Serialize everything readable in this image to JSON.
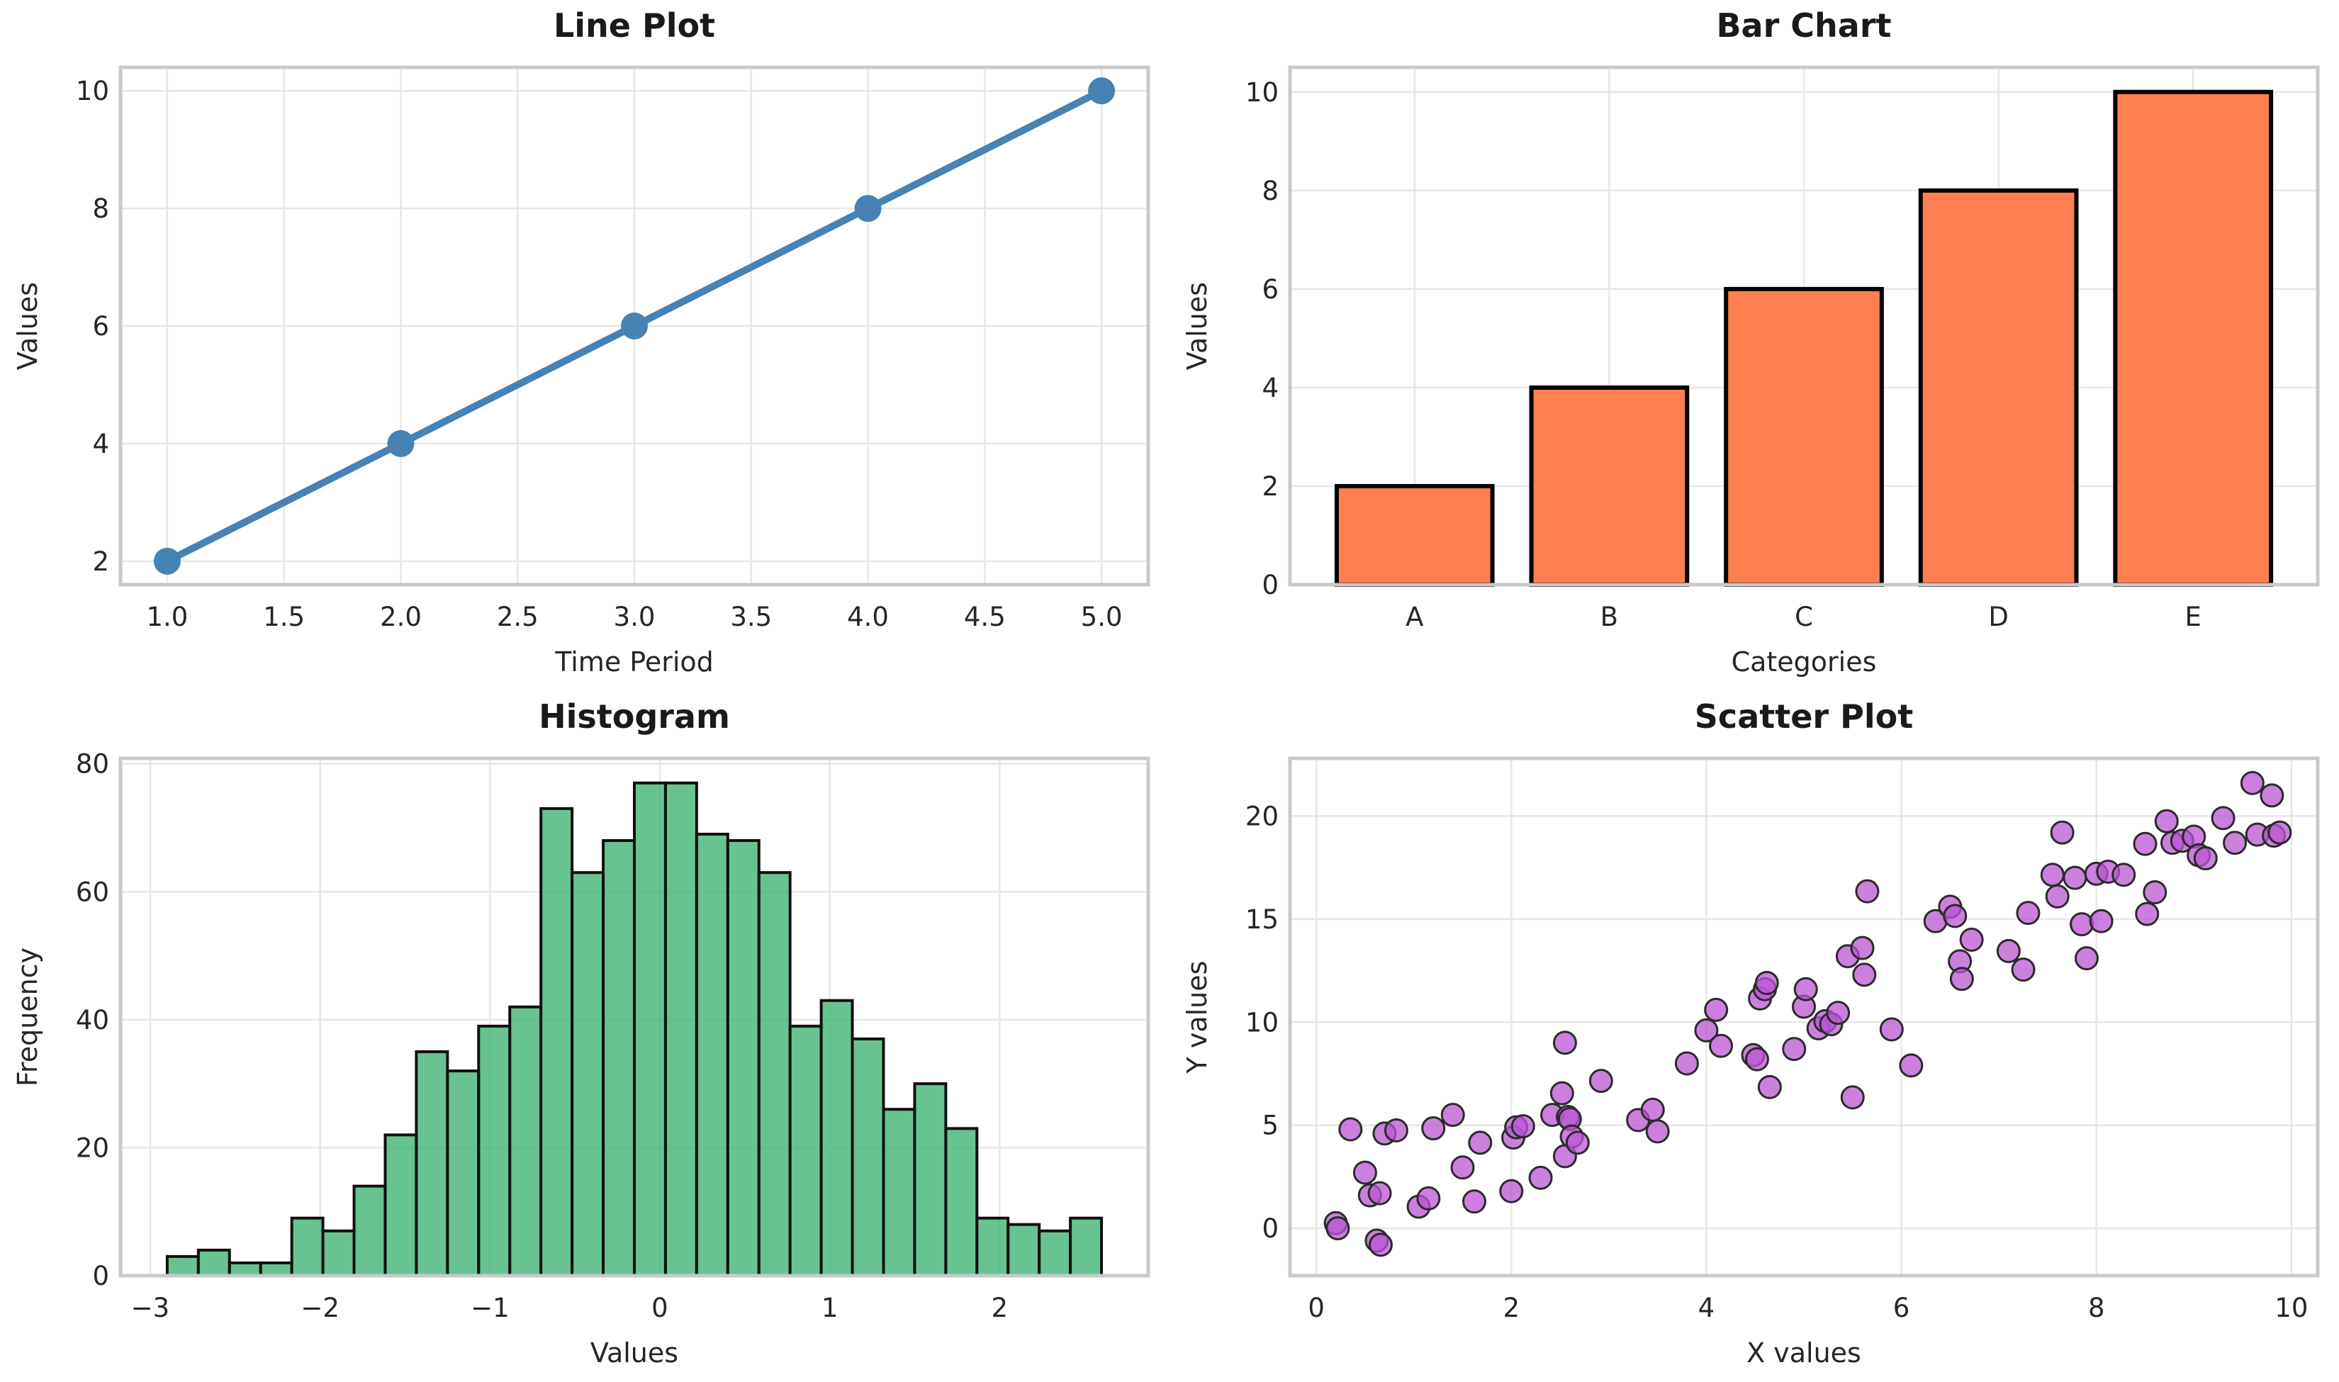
{
  "figure": {
    "background_color": "#ffffff",
    "grid_color": "#e7e7e7",
    "spine_color": "#c9c9c9",
    "tick_color": "#262626",
    "title_color": "#1a1a1a"
  },
  "chart_data": [
    {
      "type": "line",
      "title": "Line Plot",
      "xlabel": "Time Period",
      "ylabel": "Values",
      "color": "#4682B4",
      "x": [
        1,
        2,
        3,
        4,
        5
      ],
      "y": [
        2,
        4,
        6,
        8,
        10
      ],
      "xticks": [
        1.0,
        1.5,
        2.0,
        2.5,
        3.0,
        3.5,
        4.0,
        4.5,
        5.0
      ],
      "yticks": [
        2,
        4,
        6,
        8,
        10
      ],
      "xtick_labels": [
        "1.0",
        "1.5",
        "2.0",
        "2.5",
        "3.0",
        "3.5",
        "4.0",
        "4.5",
        "5.0"
      ],
      "ytick_labels": [
        "2",
        "4",
        "6",
        "8",
        "10"
      ],
      "xlim": [
        0.8,
        5.2
      ],
      "ylim": [
        1.6,
        10.4
      ],
      "grid": true,
      "line_width": 10,
      "marker_radius": 19
    },
    {
      "type": "bar",
      "title": "Bar Chart",
      "xlabel": "Categories",
      "ylabel": "Values",
      "color": "#FF7F50",
      "edge_color": "#000000",
      "categories": [
        "A",
        "B",
        "C",
        "D",
        "E"
      ],
      "values": [
        2,
        4,
        6,
        8,
        10
      ],
      "xticks": [
        0,
        1,
        2,
        3,
        4
      ],
      "yticks": [
        0,
        2,
        4,
        6,
        8,
        10
      ],
      "xtick_labels": [
        "A",
        "B",
        "C",
        "D",
        "E"
      ],
      "ytick_labels": [
        "0",
        "2",
        "4",
        "6",
        "8",
        "10"
      ],
      "xlim": [
        -0.64,
        4.64
      ],
      "ylim": [
        0,
        10.5
      ],
      "grid": true,
      "bar_width": 0.8,
      "edge_width": 6
    },
    {
      "type": "histogram",
      "title": "Histogram",
      "xlabel": "Values",
      "ylabel": "Frequency",
      "color": "#3CB371",
      "fill_opacity": 0.78,
      "edge_color": "#111111",
      "bin_start": -2.9,
      "bin_width": 0.18333,
      "counts": [
        3,
        4,
        2,
        2,
        9,
        7,
        14,
        22,
        35,
        32,
        39,
        42,
        73,
        63,
        68,
        77,
        77,
        69,
        68,
        63,
        39,
        43,
        37,
        26,
        30,
        23,
        9,
        8,
        7,
        9
      ],
      "total_samples": 1000,
      "xticks": [
        -3,
        -2,
        -1,
        0,
        1,
        2
      ],
      "yticks": [
        0,
        20,
        40,
        60,
        80
      ],
      "xtick_labels": [
        "−3",
        "−2",
        "−1",
        "0",
        "1",
        "2"
      ],
      "ytick_labels": [
        "0",
        "20",
        "40",
        "60",
        "80"
      ],
      "xlim": [
        -3.175,
        2.875
      ],
      "ylim": [
        0,
        80.85
      ],
      "grid": true,
      "edge_width": 4
    },
    {
      "type": "scatter",
      "title": "Scatter Plot",
      "xlabel": "X values",
      "ylabel": "Y values",
      "color": "#BA55D3",
      "fill_opacity": 0.75,
      "edge_color": "#2b2b2b",
      "points": [
        [
          0.2,
          0.25
        ],
        [
          0.22,
          0.0
        ],
        [
          0.62,
          -0.6
        ],
        [
          0.66,
          -0.8
        ],
        [
          0.35,
          4.8
        ],
        [
          0.7,
          4.6
        ],
        [
          0.82,
          4.75
        ],
        [
          0.5,
          2.7
        ],
        [
          0.55,
          1.6
        ],
        [
          0.65,
          1.7
        ],
        [
          1.05,
          1.05
        ],
        [
          1.15,
          1.45
        ],
        [
          1.2,
          4.85
        ],
        [
          1.4,
          5.5
        ],
        [
          1.5,
          2.95
        ],
        [
          1.62,
          1.3
        ],
        [
          1.68,
          4.15
        ],
        [
          2.0,
          1.8
        ],
        [
          2.02,
          4.4
        ],
        [
          2.05,
          4.9
        ],
        [
          2.12,
          4.95
        ],
        [
          2.3,
          2.45
        ],
        [
          2.42,
          5.5
        ],
        [
          2.52,
          6.55
        ],
        [
          2.55,
          9.0
        ],
        [
          2.58,
          5.4
        ],
        [
          2.6,
          5.3
        ],
        [
          2.55,
          3.5
        ],
        [
          2.62,
          4.45
        ],
        [
          2.68,
          4.15
        ],
        [
          2.92,
          7.15
        ],
        [
          3.3,
          5.25
        ],
        [
          3.45,
          5.75
        ],
        [
          3.5,
          4.7
        ],
        [
          3.8,
          8.0
        ],
        [
          4.0,
          9.6
        ],
        [
          4.1,
          10.6
        ],
        [
          4.15,
          8.85
        ],
        [
          4.48,
          8.4
        ],
        [
          4.52,
          8.2
        ],
        [
          4.55,
          11.15
        ],
        [
          4.6,
          11.6
        ],
        [
          4.62,
          11.9
        ],
        [
          4.65,
          6.85
        ],
        [
          4.9,
          8.7
        ],
        [
          5.0,
          10.75
        ],
        [
          5.02,
          11.6
        ],
        [
          5.15,
          9.7
        ],
        [
          5.22,
          10.05
        ],
        [
          5.28,
          9.9
        ],
        [
          5.35,
          10.45
        ],
        [
          5.45,
          13.2
        ],
        [
          5.5,
          6.35
        ],
        [
          5.6,
          13.6
        ],
        [
          5.62,
          12.3
        ],
        [
          5.65,
          16.35
        ],
        [
          5.9,
          9.65
        ],
        [
          6.1,
          7.9
        ],
        [
          6.35,
          14.9
        ],
        [
          6.5,
          15.6
        ],
        [
          6.55,
          15.15
        ],
        [
          6.6,
          12.95
        ],
        [
          6.62,
          12.1
        ],
        [
          6.72,
          14.0
        ],
        [
          7.1,
          13.45
        ],
        [
          7.25,
          12.55
        ],
        [
          7.3,
          15.3
        ],
        [
          7.55,
          17.15
        ],
        [
          7.6,
          16.1
        ],
        [
          7.65,
          19.2
        ],
        [
          7.78,
          17.0
        ],
        [
          7.85,
          14.75
        ],
        [
          7.9,
          13.1
        ],
        [
          8.0,
          17.2
        ],
        [
          8.05,
          14.9
        ],
        [
          8.12,
          17.3
        ],
        [
          8.28,
          17.15
        ],
        [
          8.5,
          18.65
        ],
        [
          8.52,
          15.25
        ],
        [
          8.6,
          16.3
        ],
        [
          8.72,
          19.75
        ],
        [
          8.78,
          18.7
        ],
        [
          8.88,
          18.8
        ],
        [
          9.0,
          19.0
        ],
        [
          9.05,
          18.1
        ],
        [
          9.12,
          17.95
        ],
        [
          9.3,
          19.9
        ],
        [
          9.42,
          18.7
        ],
        [
          9.6,
          21.6
        ],
        [
          9.65,
          19.1
        ],
        [
          9.8,
          21.0
        ],
        [
          9.82,
          19.05
        ],
        [
          9.88,
          19.2
        ]
      ],
      "xticks": [
        0,
        2,
        4,
        6,
        8,
        10
      ],
      "yticks": [
        0,
        5,
        10,
        15,
        20
      ],
      "xtick_labels": [
        "0",
        "2",
        "4",
        "6",
        "8",
        "10"
      ],
      "ytick_labels": [
        "0",
        "5",
        "10",
        "15",
        "20"
      ],
      "xlim": [
        -0.27,
        10.27
      ],
      "ylim": [
        -2.3,
        22.8
      ],
      "grid": true,
      "marker_radius": 15.5,
      "edge_width": 3
    }
  ]
}
